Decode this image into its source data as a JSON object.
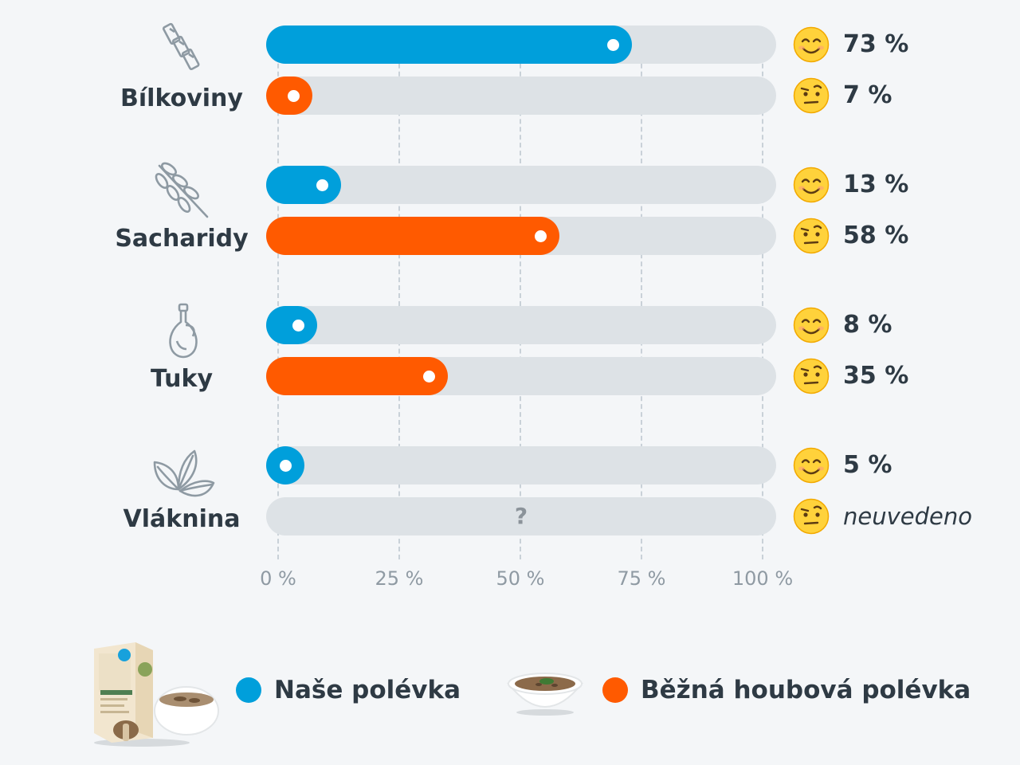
{
  "chart_data": {
    "type": "bar",
    "orientation": "horizontal",
    "xlim": [
      0,
      100
    ],
    "ticks": [
      "0 %",
      "25 %",
      "50 %",
      "75 %",
      "100 %"
    ],
    "tick_values": [
      0,
      25,
      50,
      75,
      100
    ],
    "grid": true,
    "legend_position": "bottom",
    "colors": {
      "our": "#009fdb",
      "regular": "#ff5a00"
    },
    "series_names": [
      "Naše polévka",
      "Běžná houbová polévka"
    ],
    "categories": [
      {
        "label": "Bílkoviny",
        "icon": "pasta-icon",
        "bars": [
          {
            "series": "our",
            "value": 73,
            "value_label": "73 %",
            "emoji": "smiling-face-icon"
          },
          {
            "series": "regular",
            "value": 7,
            "value_label": "7 %",
            "emoji": "raised-eyebrow-face-icon"
          }
        ]
      },
      {
        "label": "Sacharidy",
        "icon": "wheat-icon",
        "bars": [
          {
            "series": "our",
            "value": 13,
            "value_label": "13 %",
            "emoji": "smiling-face-icon"
          },
          {
            "series": "regular",
            "value": 58,
            "value_label": "58 %",
            "emoji": "raised-eyebrow-face-icon"
          }
        ]
      },
      {
        "label": "Tuky",
        "icon": "oil-bottle-icon",
        "bars": [
          {
            "series": "our",
            "value": 8,
            "value_label": "8 %",
            "emoji": "smiling-face-icon"
          },
          {
            "series": "regular",
            "value": 35,
            "value_label": "35 %",
            "emoji": "raised-eyebrow-face-icon"
          }
        ]
      },
      {
        "label": "Vláknina",
        "icon": "leaves-icon",
        "bars": [
          {
            "series": "our",
            "value": 5,
            "value_label": "5 %",
            "emoji": "smiling-face-icon"
          },
          {
            "series": "regular",
            "value": null,
            "value_label": "neuvedeno",
            "unknown_mark": "?",
            "emoji": "raised-eyebrow-face-icon"
          }
        ]
      }
    ]
  },
  "legend": {
    "our_label": "Naše polévka",
    "our_image": "soup-box-and-bowl-image",
    "regular_label": "Běžná houbová polévka",
    "regular_image": "soup-bowl-image"
  }
}
